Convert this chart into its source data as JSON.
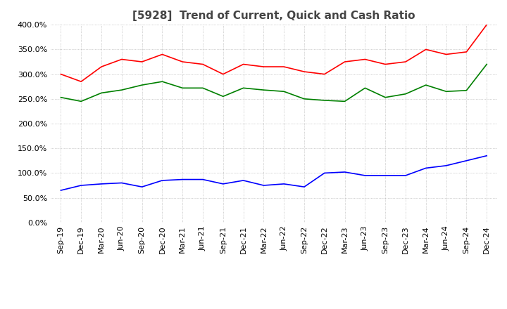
{
  "title": "[5928]  Trend of Current, Quick and Cash Ratio",
  "x_labels": [
    "Sep-19",
    "Dec-19",
    "Mar-20",
    "Jun-20",
    "Sep-20",
    "Dec-20",
    "Mar-21",
    "Jun-21",
    "Sep-21",
    "Dec-21",
    "Mar-22",
    "Jun-22",
    "Sep-22",
    "Dec-22",
    "Mar-23",
    "Jun-23",
    "Sep-23",
    "Dec-23",
    "Mar-24",
    "Jun-24",
    "Sep-24",
    "Dec-24"
  ],
  "current_ratio": [
    300,
    285,
    315,
    330,
    325,
    340,
    325,
    320,
    300,
    320,
    315,
    315,
    305,
    300,
    325,
    330,
    320,
    325,
    350,
    340,
    345,
    400
  ],
  "quick_ratio": [
    253,
    245,
    262,
    268,
    278,
    285,
    272,
    272,
    255,
    272,
    268,
    265,
    250,
    247,
    245,
    272,
    253,
    260,
    278,
    265,
    267,
    320
  ],
  "cash_ratio": [
    65,
    75,
    78,
    80,
    72,
    85,
    87,
    87,
    78,
    85,
    75,
    78,
    72,
    100,
    102,
    95,
    95,
    95,
    110,
    115,
    125,
    135
  ],
  "ylim": [
    0,
    400
  ],
  "yticks": [
    0,
    50,
    100,
    150,
    200,
    250,
    300,
    350,
    400
  ],
  "current_color": "#FF0000",
  "quick_color": "#008000",
  "cash_color": "#0000FF",
  "background_color": "#ffffff",
  "grid_color": "#aaaaaa",
  "title_fontsize": 11,
  "tick_fontsize": 8,
  "legend_fontsize": 9
}
